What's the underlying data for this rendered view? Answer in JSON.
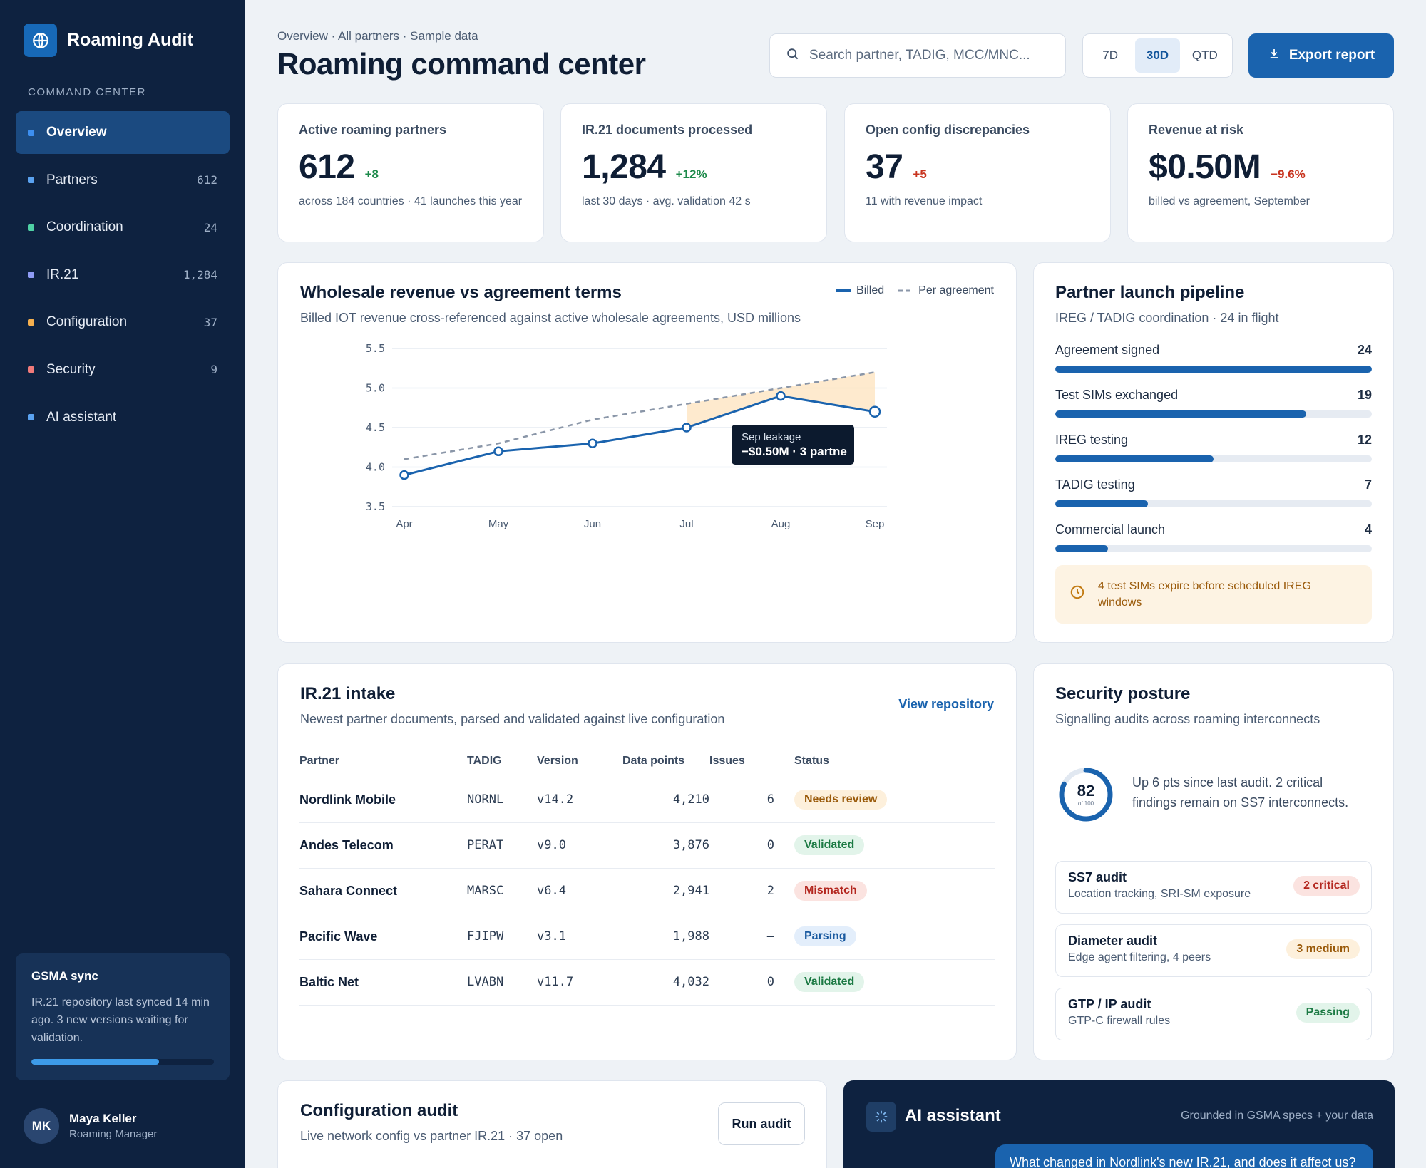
{
  "app": {
    "name": "Roaming Audit"
  },
  "sidebar": {
    "heading": "COMMAND CENTER",
    "items": [
      {
        "label": "Overview",
        "count": "",
        "color": "#3d8ff0",
        "active": true
      },
      {
        "label": "Partners",
        "count": "612",
        "color": "#5aa2f0"
      },
      {
        "label": "Coordination",
        "count": "24",
        "color": "#4fd1a5"
      },
      {
        "label": "IR.21",
        "count": "1,284",
        "color": "#8f9cf5"
      },
      {
        "label": "Configuration",
        "count": "37",
        "color": "#f5b04f"
      },
      {
        "label": "Security",
        "count": "9",
        "color": "#f07a7a"
      },
      {
        "label": "AI assistant",
        "count": "",
        "color": "#5aa2f0"
      }
    ],
    "sync": {
      "title": "GSMA sync",
      "text": "IR.21 repository last synced 14 min ago. 3 new versions waiting for validation.",
      "progress": 0.7
    },
    "user": {
      "initials": "MK",
      "name": "Maya Keller",
      "role": "Roaming Manager"
    }
  },
  "header": {
    "breadcrumb": "Overview · All partners · Sample data",
    "title": "Roaming command center",
    "search_placeholder": "Search partner, TADIG, MCC/MNC...",
    "ranges": [
      "7D",
      "30D",
      "QTD"
    ],
    "active_range": "30D",
    "export_label": "Export report"
  },
  "kpis": [
    {
      "label": "Active roaming partners",
      "value": "612",
      "delta": "+8",
      "delta_color": "#1c8a4a",
      "sub": "across 184 countries · 41 launches this year"
    },
    {
      "label": "IR.21 documents processed",
      "value": "1,284",
      "delta": "+12%",
      "delta_color": "#1c8a4a",
      "sub": "last 30 days · avg. validation 42 s"
    },
    {
      "label": "Open config discrepancies",
      "value": "37",
      "delta": "+5",
      "delta_color": "#c8341f",
      "sub": "11 with revenue impact"
    },
    {
      "label": "Revenue at risk",
      "value": "$0.50M",
      "delta": "−9.6%",
      "delta_color": "#c8341f",
      "sub": "billed vs agreement, September"
    }
  ],
  "revenue": {
    "title": "Wholesale revenue vs agreement terms",
    "subtitle": "Billed IOT revenue cross-referenced against active wholesale agreements, USD millions",
    "legend": [
      "Billed",
      "Per agreement"
    ],
    "tooltip": {
      "title": "Sep leakage",
      "value": "−$0.50M · 3 partne"
    }
  },
  "chart_data": {
    "type": "line",
    "x": [
      "Apr",
      "May",
      "Jun",
      "Jul",
      "Aug",
      "Sep"
    ],
    "series": [
      {
        "name": "Billed",
        "values": [
          3.9,
          4.2,
          4.3,
          4.5,
          4.9,
          4.7
        ],
        "color": "#1a63ae",
        "style": "solid"
      },
      {
        "name": "Per agreement",
        "values": [
          4.1,
          4.3,
          4.6,
          4.8,
          5.0,
          5.2
        ],
        "color": "#8a96a8",
        "style": "dashed"
      }
    ],
    "ylim": [
      3.5,
      5.5
    ],
    "yticks": [
      "5.5",
      "5.0",
      "4.5",
      "4.0",
      "3.5"
    ],
    "shaded_gap_from": "Jul",
    "grid": true,
    "legend_position": "top-right"
  },
  "pipeline": {
    "title": "Partner launch pipeline",
    "subtitle": "IREG / TADIG coordination · 24 in flight",
    "max": 24,
    "stages": [
      {
        "label": "Agreement signed",
        "count": 24
      },
      {
        "label": "Test SIMs exchanged",
        "count": 19
      },
      {
        "label": "IREG testing",
        "count": 12
      },
      {
        "label": "TADIG testing",
        "count": 7
      },
      {
        "label": "Commercial launch",
        "count": 4
      }
    ],
    "warning": "4 test SIMs expire before scheduled IREG windows"
  },
  "ir21": {
    "title": "IR.21 intake",
    "subtitle": "Newest partner documents, parsed and validated against live configuration",
    "link": "View repository",
    "columns": [
      "Partner",
      "TADIG",
      "Version",
      "Data points",
      "Issues",
      "Status"
    ],
    "rows": [
      {
        "partner": "Nordlink Mobile",
        "tadig": "NORNL",
        "version": "v14.2",
        "points": "4,210",
        "issues": "6",
        "status": "Needs review",
        "bg": "#fdf0dc",
        "fg": "#9a5a0a"
      },
      {
        "partner": "Andes Telecom",
        "tadig": "PERAT",
        "version": "v9.0",
        "points": "3,876",
        "issues": "0",
        "status": "Validated",
        "bg": "#e2f4ea",
        "fg": "#1c7a44"
      },
      {
        "partner": "Sahara Connect",
        "tadig": "MARSC",
        "version": "v6.4",
        "points": "2,941",
        "issues": "2",
        "status": "Mismatch",
        "bg": "#fbe3e0",
        "fg": "#b3261e"
      },
      {
        "partner": "Pacific Wave",
        "tadig": "FJIPW",
        "version": "v3.1",
        "points": "1,988",
        "issues": "—",
        "status": "Parsing",
        "bg": "#e3eefb",
        "fg": "#1a5aa0"
      },
      {
        "partner": "Baltic Net",
        "tadig": "LVABN",
        "version": "v11.7",
        "points": "4,032",
        "issues": "0",
        "status": "Validated",
        "bg": "#e2f4ea",
        "fg": "#1c7a44"
      }
    ]
  },
  "security": {
    "title": "Security posture",
    "subtitle": "Signalling audits across roaming interconnects",
    "score": "82",
    "score_of": "of 100",
    "score_fraction": 0.82,
    "summary": "Up 6 pts since last audit. 2 critical findings remain on SS7 interconnects.",
    "audits": [
      {
        "title": "SS7 audit",
        "sub": "Location tracking, SRI-SM exposure",
        "badge": "2 critical",
        "bg": "#fbe3e0",
        "fg": "#b3261e"
      },
      {
        "title": "Diameter audit",
        "sub": "Edge agent filtering, 4 peers",
        "badge": "3 medium",
        "bg": "#fdf0dc",
        "fg": "#9a5a0a"
      },
      {
        "title": "GTP / IP audit",
        "sub": "GTP-C firewall rules",
        "badge": "Passing",
        "bg": "#e2f4ea",
        "fg": "#1c7a44"
      }
    ]
  },
  "config": {
    "title": "Configuration audit",
    "subtitle": "Live network config vs partner IR.21 · 37 open",
    "run_label": "Run audit"
  },
  "ai": {
    "title": "AI assistant",
    "meta": "Grounded in GSMA specs + your data",
    "question": "What changed in Nordlink's new IR.21, and does it affect us?"
  }
}
